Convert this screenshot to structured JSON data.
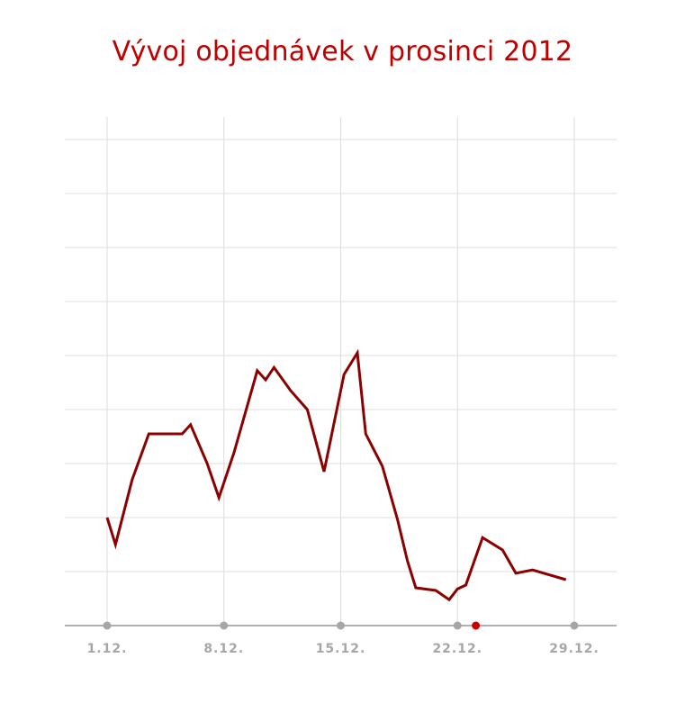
{
  "chart_data": {
    "type": "line",
    "title": "Vývoj objednávek v prosinci 2012",
    "xlabel": "",
    "ylabel": "",
    "x_range_days": [
      1,
      31
    ],
    "tick_labels": [
      {
        "day": 1,
        "label": "1.12."
      },
      {
        "day": 8,
        "label": "8.12."
      },
      {
        "day": 15,
        "label": "15.12."
      },
      {
        "day": 22,
        "label": "22.12."
      },
      {
        "day": 29,
        "label": "29.12."
      }
    ],
    "ylim": [
      0,
      9
    ],
    "grid": true,
    "series": [
      {
        "color": "#8b0000",
        "points": [
          {
            "day": 1,
            "value": 2.0
          },
          {
            "day": 1.5,
            "value": 1.5
          },
          {
            "day": 2.5,
            "value": 2.7
          },
          {
            "day": 3.5,
            "value": 3.55
          },
          {
            "day": 4.5,
            "value": 3.55
          },
          {
            "day": 5.5,
            "value": 3.55
          },
          {
            "day": 6.0,
            "value": 3.72
          },
          {
            "day": 7.0,
            "value": 3.0
          },
          {
            "day": 7.7,
            "value": 2.37
          },
          {
            "day": 8.6,
            "value": 3.2
          },
          {
            "day": 10.0,
            "value": 4.72
          },
          {
            "day": 10.5,
            "value": 4.55
          },
          {
            "day": 11.0,
            "value": 4.78
          },
          {
            "day": 12.0,
            "value": 4.35
          },
          {
            "day": 13.0,
            "value": 4.0
          },
          {
            "day": 14.0,
            "value": 2.85
          },
          {
            "day": 15.2,
            "value": 4.65
          },
          {
            "day": 16.0,
            "value": 5.05
          },
          {
            "day": 16.5,
            "value": 3.55
          },
          {
            "day": 17.5,
            "value": 2.95
          },
          {
            "day": 18.4,
            "value": 1.97
          },
          {
            "day": 19.0,
            "value": 1.2
          },
          {
            "day": 19.5,
            "value": 0.7
          },
          {
            "day": 20.7,
            "value": 0.65
          },
          {
            "day": 21.5,
            "value": 0.48
          },
          {
            "day": 22.0,
            "value": 0.68
          },
          {
            "day": 22.5,
            "value": 0.75
          },
          {
            "day": 23.5,
            "value": 1.63
          },
          {
            "day": 24.7,
            "value": 1.4
          },
          {
            "day": 25.5,
            "value": 0.97
          },
          {
            "day": 26.5,
            "value": 1.03
          },
          {
            "day": 28.5,
            "value": 0.85
          }
        ]
      }
    ],
    "highlight_marker": {
      "day": 23.1,
      "color": "#cc0000"
    }
  }
}
